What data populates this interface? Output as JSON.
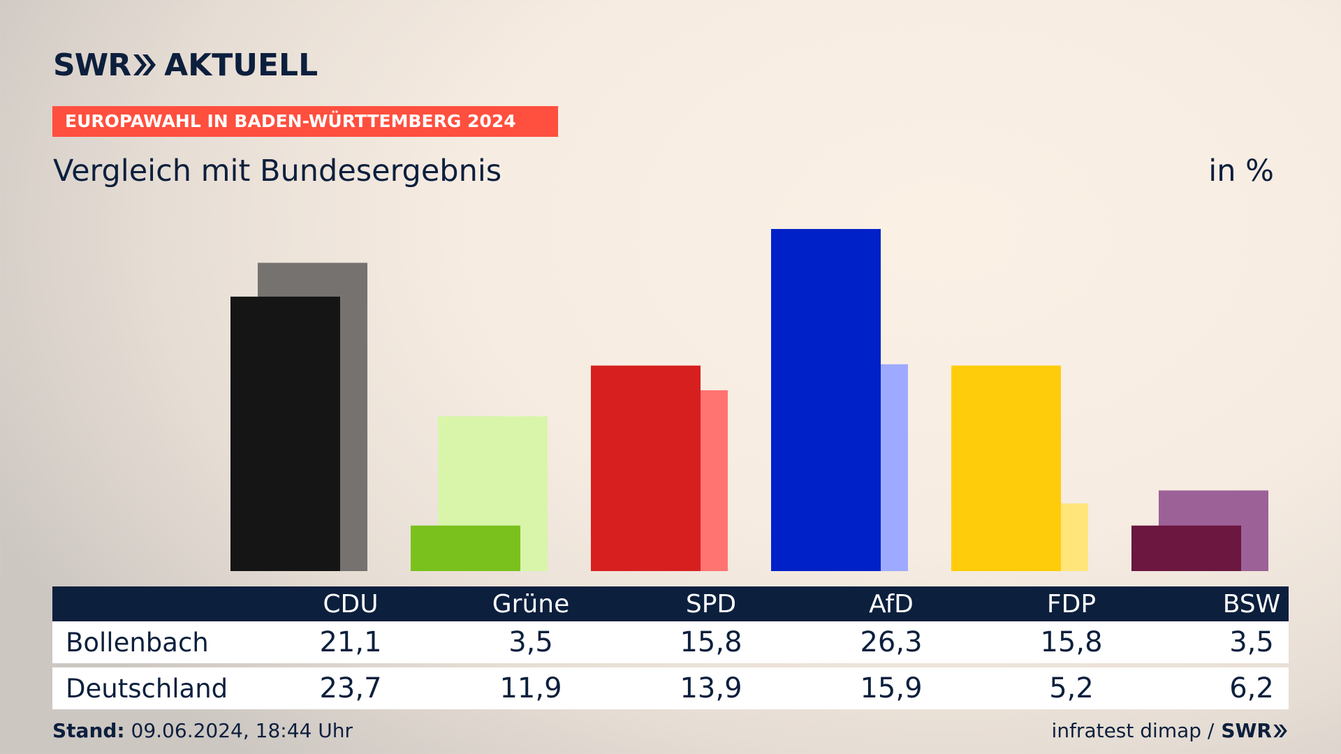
{
  "header": {
    "logo_swr": "SWR",
    "logo_aktuell": "AKTUELL",
    "banner": "EUROPAWAHL IN BADEN-WÜRTTEMBERG 2024",
    "subtitle": "Vergleich mit Bundesergebnis",
    "unit": "in %"
  },
  "colors": {
    "navy": "#0c1f3d",
    "banner": "#ff4f3e"
  },
  "chart_data": {
    "type": "bar",
    "categories": [
      "CDU",
      "Grüne",
      "SPD",
      "AfD",
      "FDP",
      "BSW"
    ],
    "series": [
      {
        "name": "Bollenbach",
        "values": [
          21.1,
          3.5,
          15.8,
          26.3,
          15.8,
          3.5
        ],
        "colors": [
          "#151515",
          "#7ac11e",
          "#d71f1f",
          "#0020c8",
          "#ffcc0b",
          "#6b1740"
        ]
      },
      {
        "name": "Deutschland",
        "values": [
          23.7,
          11.9,
          13.9,
          15.9,
          5.2,
          6.2
        ],
        "colors": [
          "#767270",
          "#d8f5aa",
          "#ff7370",
          "#9eaaff",
          "#ffe57a",
          "#9c6196"
        ]
      }
    ],
    "ylim": [
      0,
      26.3
    ]
  },
  "table": {
    "rows": [
      {
        "label": "Bollenbach",
        "values": [
          "21,1",
          "3,5",
          "15,8",
          "26,3",
          "15,8",
          "3,5"
        ]
      },
      {
        "label": "Deutschland",
        "values": [
          "23,7",
          "11,9",
          "13,9",
          "15,9",
          "5,2",
          "6,2"
        ]
      }
    ]
  },
  "footer": {
    "stand_label": "Stand:",
    "stand_value": "09.06.2024, 18:44 Uhr",
    "source": "infratest dimap /",
    "source_logo": "SWR"
  }
}
